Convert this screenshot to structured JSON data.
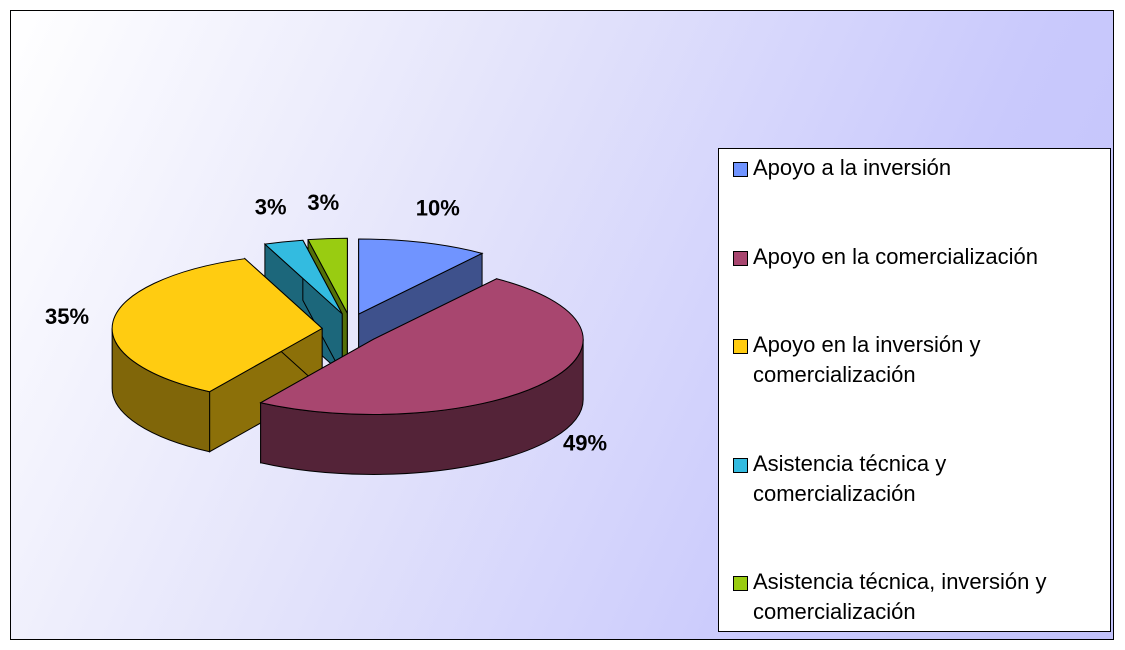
{
  "chart_data": {
    "type": "pie",
    "categories": [
      "Apoyo a la inversión",
      "Apoyo en la comercialización",
      "Apoyo en la inversión y comercialización",
      "Asistencia técnica y comercialización",
      "Asistencia técnica, inversión y comercialización"
    ],
    "values": [
      10,
      49,
      35,
      3,
      3
    ],
    "value_labels": [
      "10%",
      "49%",
      "35%",
      "3%",
      "3%"
    ],
    "colors": [
      "#7094ff",
      "#a8466f",
      "#ffcc11",
      "#33bbe0",
      "#99cc11"
    ],
    "legend": "right"
  }
}
